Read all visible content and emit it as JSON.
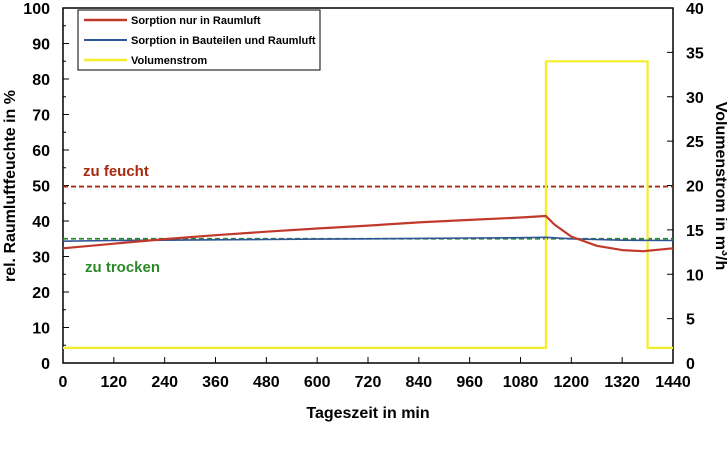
{
  "chart_data": {
    "type": "line",
    "xlabel": "Tageszeit in min",
    "ylabel": "rel. Raumluftfeuchte in %",
    "y2label_prefix": "Volumenstrom in m",
    "y2label_sup": "3",
    "y2label_suffix": "/h",
    "xlim": [
      0,
      1440
    ],
    "ylim": [
      0,
      100
    ],
    "y2lim": [
      0,
      40
    ],
    "xticks": [
      0,
      120,
      240,
      360,
      480,
      600,
      720,
      840,
      960,
      1080,
      1200,
      1320,
      1440
    ],
    "yticks": [
      0,
      10,
      20,
      30,
      40,
      50,
      60,
      70,
      80,
      90,
      100
    ],
    "y2ticks": [
      0,
      5,
      10,
      15,
      20,
      25,
      30,
      35,
      40
    ],
    "legend_position": "top-left",
    "series": [
      {
        "name": "Sorption nur in Raumluft",
        "axis": "left",
        "color": "#c0392b",
        "x": [
          0,
          120,
          240,
          360,
          480,
          600,
          720,
          840,
          960,
          1080,
          1140,
          1160,
          1200,
          1260,
          1320,
          1370,
          1440
        ],
        "y": [
          32.3,
          33.6,
          34.9,
          36.0,
          37.0,
          37.9,
          38.7,
          39.6,
          40.3,
          41.0,
          41.4,
          39.0,
          35.6,
          33.0,
          31.8,
          31.5,
          32.3
        ]
      },
      {
        "name": "Sorption in Bauteilen und Raumluft",
        "axis": "left",
        "color": "#2e5597",
        "x": [
          0,
          120,
          240,
          360,
          480,
          600,
          720,
          840,
          960,
          1080,
          1140,
          1200,
          1320,
          1440
        ],
        "y": [
          34.3,
          34.5,
          34.6,
          34.7,
          34.8,
          34.9,
          35.0,
          35.1,
          35.2,
          35.3,
          35.4,
          35.0,
          34.6,
          34.5
        ]
      },
      {
        "name": "Volumenstrom",
        "axis": "right",
        "color": "#f2ee2a",
        "x": [
          0,
          1140,
          1140,
          1380,
          1380,
          1440
        ],
        "y": [
          1.7,
          1.7,
          34.0,
          34.0,
          1.7,
          1.7
        ]
      }
    ],
    "thresholds": [
      {
        "label": "zu feucht",
        "value": 49.7,
        "color": "#a52a0f"
      },
      {
        "label": "zu trocken",
        "value": 35.0,
        "color": "#2a8a2a"
      }
    ]
  }
}
